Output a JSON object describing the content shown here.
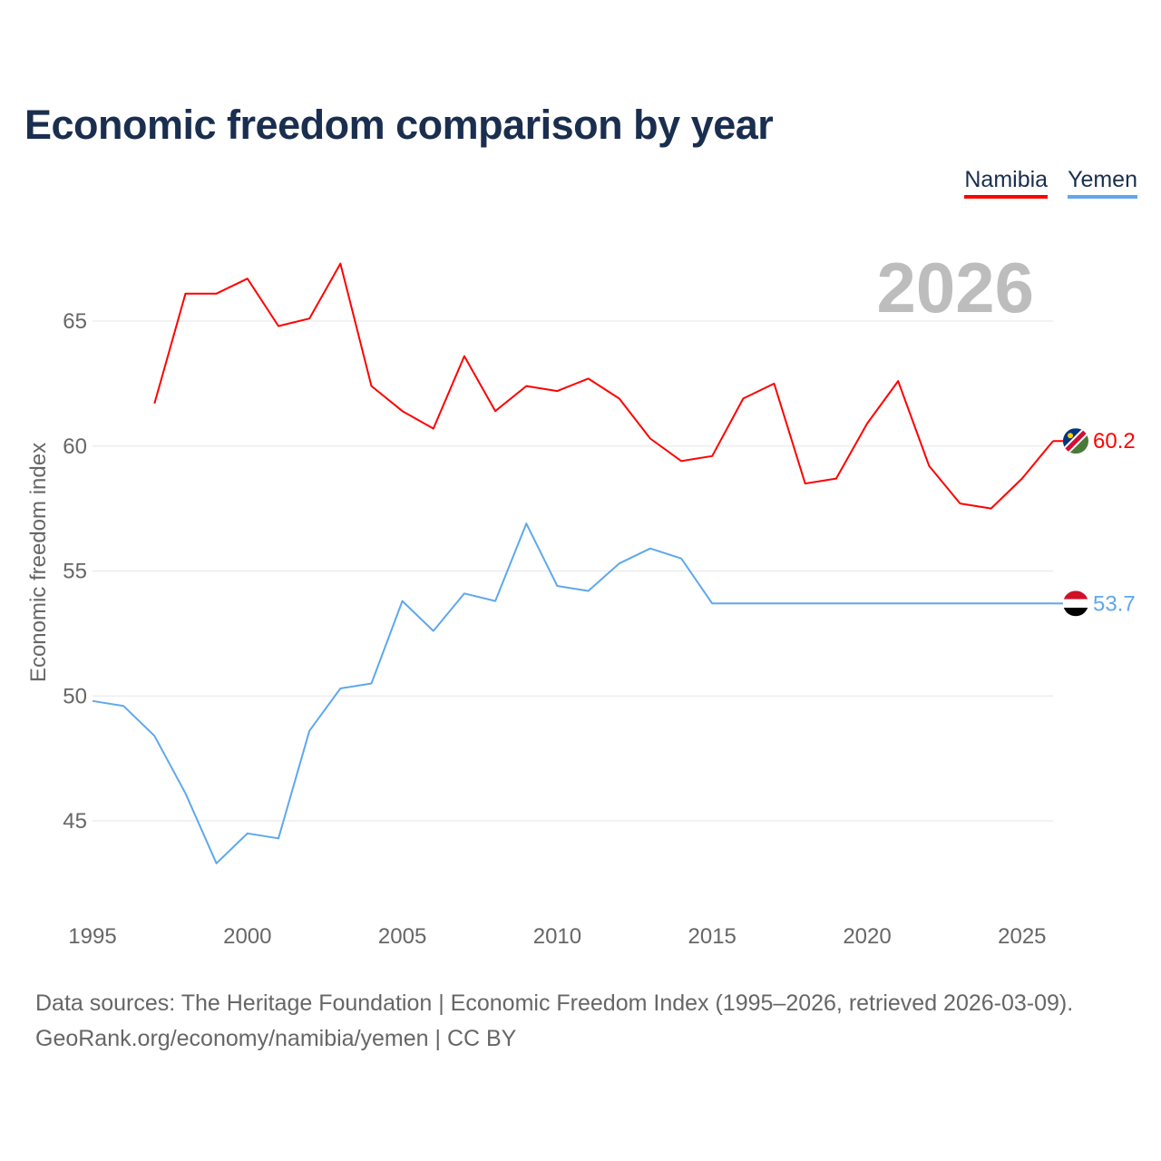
{
  "title": "Economic freedom comparison by year",
  "year_label": "2026",
  "legend": [
    {
      "name": "Namibia",
      "color": "#ff0000"
    },
    {
      "name": "Yemen",
      "color": "#5ea8ec"
    }
  ],
  "source_line1": "Data sources: The Heritage Foundation | Economic Freedom Index (1995–2026, retrieved 2026-03-09).",
  "source_line2": "GeoRank.org/economy/namibia/yemen | CC BY",
  "chart_data": {
    "type": "line",
    "title": "Economic freedom comparison by year",
    "xlabel": "",
    "ylabel": "Economic freedom index",
    "xlim": [
      1995,
      2026
    ],
    "ylim": [
      41.6,
      69.2
    ],
    "xticks": [
      1995,
      2000,
      2005,
      2010,
      2015,
      2020,
      2025
    ],
    "yticks": [
      45,
      50,
      55,
      60,
      65
    ],
    "grid": true,
    "legend_position": "top-right",
    "series": [
      {
        "name": "Namibia",
        "color": "#ff0000",
        "end_label": "60.2",
        "x": [
          1997,
          1998,
          1999,
          2000,
          2001,
          2002,
          2003,
          2004,
          2005,
          2006,
          2007,
          2008,
          2009,
          2010,
          2011,
          2012,
          2013,
          2014,
          2015,
          2016,
          2017,
          2018,
          2019,
          2020,
          2021,
          2022,
          2023,
          2024,
          2025,
          2026
        ],
        "y": [
          61.7,
          66.1,
          66.1,
          66.7,
          64.8,
          65.1,
          67.3,
          62.4,
          61.4,
          60.7,
          63.6,
          61.4,
          62.4,
          62.2,
          62.7,
          61.9,
          60.3,
          59.4,
          59.6,
          61.9,
          62.5,
          58.5,
          58.7,
          60.9,
          62.6,
          59.2,
          57.7,
          57.5,
          58.7,
          60.2
        ]
      },
      {
        "name": "Yemen",
        "color": "#5ea8ec",
        "end_label": "53.7",
        "x": [
          1995,
          1996,
          1997,
          1998,
          1999,
          2000,
          2001,
          2002,
          2003,
          2004,
          2005,
          2006,
          2007,
          2008,
          2009,
          2010,
          2011,
          2012,
          2013,
          2014,
          2015,
          2016,
          2017,
          2018,
          2019,
          2020,
          2021,
          2022,
          2023,
          2024,
          2025,
          2026
        ],
        "y": [
          49.8,
          49.6,
          48.4,
          46.1,
          43.3,
          44.5,
          44.3,
          48.6,
          50.3,
          50.5,
          53.8,
          52.6,
          54.1,
          53.8,
          56.9,
          54.4,
          54.2,
          55.3,
          55.9,
          55.5,
          53.7,
          53.7,
          53.7,
          53.7,
          53.7,
          53.7,
          53.7,
          53.7,
          53.7,
          53.7,
          53.7,
          53.7
        ]
      }
    ]
  }
}
